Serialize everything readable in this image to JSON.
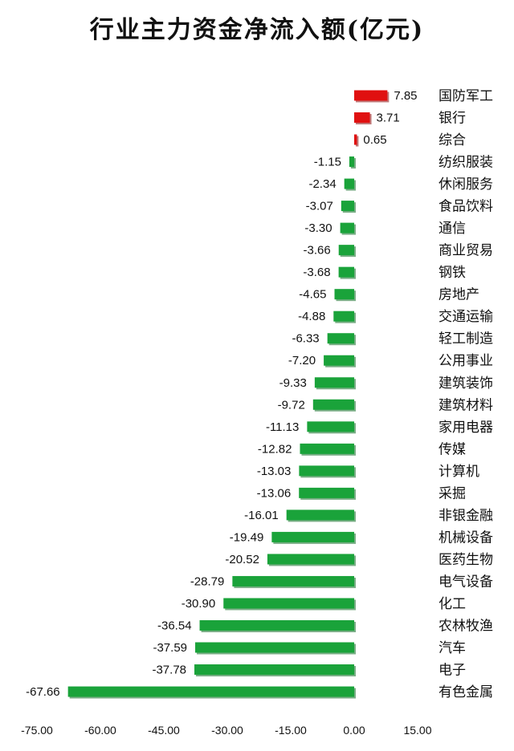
{
  "chart_data": {
    "type": "bar",
    "orientation": "horizontal",
    "title": "行业主力资金净流入额(亿元)",
    "categories": [
      "国防军工",
      "银行",
      "综合",
      "纺织服装",
      "休闲服务",
      "食品饮料",
      "通信",
      "商业贸易",
      "钢铁",
      "房地产",
      "交通运输",
      "轻工制造",
      "公用事业",
      "建筑装饰",
      "建筑材料",
      "家用电器",
      "传媒",
      "计算机",
      "采掘",
      "非银金融",
      "机械设备",
      "医药生物",
      "电气设备",
      "化工",
      "农林牧渔",
      "汽车",
      "电子",
      "有色金属"
    ],
    "values": [
      7.85,
      3.71,
      0.65,
      -1.15,
      -2.34,
      -3.07,
      -3.3,
      -3.66,
      -3.68,
      -4.65,
      -4.88,
      -6.33,
      -7.2,
      -9.33,
      -9.72,
      -11.13,
      -12.82,
      -13.03,
      -13.06,
      -16.01,
      -19.49,
      -20.52,
      -28.79,
      -30.9,
      -36.54,
      -37.59,
      -37.78,
      -67.66
    ],
    "value_labels": [
      "7.85",
      "3.71",
      "0.65",
      "-1.15",
      "-2.34",
      "-3.07",
      "-3.30",
      "-3.66",
      "-3.68",
      "-4.65",
      "-4.88",
      "-6.33",
      "-7.20",
      "-9.33",
      "-9.72",
      "-11.13",
      "-12.82",
      "-13.03",
      "-13.06",
      "-16.01",
      "-19.49",
      "-20.52",
      "-28.79",
      "-30.90",
      "-36.54",
      "-37.59",
      "-37.78",
      "-67.66"
    ],
    "xlim": [
      -75,
      15
    ],
    "xticks": [
      "-75.00",
      "-60.00",
      "-45.00",
      "-30.00",
      "-15.00",
      "0.00",
      "15.00"
    ],
    "xtick_values": [
      -75,
      -60,
      -45,
      -30,
      -15,
      0,
      15
    ],
    "grid": false,
    "legend": "none",
    "colors": {
      "positive": "#e01010",
      "negative": "#1aa33a"
    }
  }
}
